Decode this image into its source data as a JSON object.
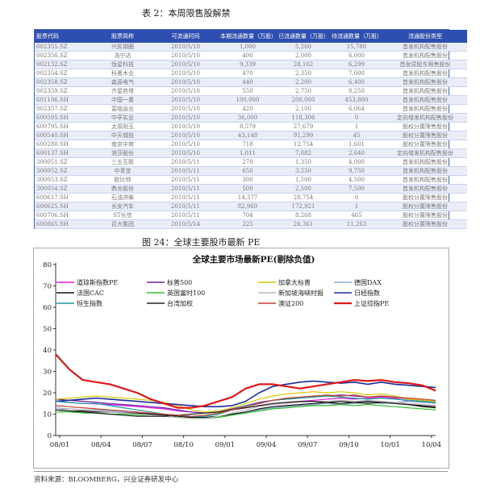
{
  "table_caption": "表 2：本周限售股解禁",
  "table": {
    "headers": [
      "股票代码",
      "股票简称",
      "可流通时间",
      "本期流通数量（万股）",
      "已流通数量（万股）",
      "待流通数量（万股）",
      "流通股份类型"
    ],
    "rows": [
      [
        "002355.SZ",
        "兴民钢圈",
        "2010/5/10",
        "1,000",
        "5,260",
        "15,780",
        "首发机构配售股份"
      ],
      [
        "002356.SZ",
        "浩宁达",
        "2010/5/10",
        "400",
        "2,000",
        "6,000",
        "首发机构配售股份"
      ],
      [
        "002132.SZ",
        "恒星科技",
        "2010/5/10",
        "9,339",
        "28,162",
        "6,299",
        "首发原股东限售股份"
      ],
      [
        "002354.SZ",
        "科冕木业",
        "2010/5/10",
        "470",
        "2,350",
        "7,000",
        "首发机构配售股份"
      ],
      [
        "002358.SZ",
        "森源电气",
        "2010/5/10",
        "440",
        "2,200",
        "6,400",
        "首发机构配售股份"
      ],
      [
        "002359.SZ",
        "齐星铁塔",
        "2010/5/10",
        "550",
        "2,750",
        "8,250",
        "首发机构配售股份"
      ],
      [
        "601106.SH",
        "中国一重",
        "2010/5/10",
        "100,000",
        "200,000",
        "453,800",
        "首发机构配售股份"
      ],
      [
        "002357.SZ",
        "富临运业",
        "2010/5/10",
        "420",
        "2,100",
        "6,064",
        "首发机构配售股份"
      ],
      [
        "600595.SH",
        "中孚实业",
        "2010/5/10",
        "36,000",
        "118,306",
        "0",
        "定向增发机构配售股份"
      ],
      [
        "600795.SH",
        "太原刚玉",
        "2010/5/10",
        "8,579",
        "27,679",
        "1",
        "股权分置限售股份"
      ],
      [
        "600540.SH",
        "中天城投",
        "2010/5/10",
        "43,148",
        "91,299",
        "45",
        "股权分置限售股份"
      ],
      [
        "600280.SH",
        "南京中商",
        "2010/5/10",
        "718",
        "12,754",
        "1,601",
        "股权分置限售股份"
      ],
      [
        "600137.SH",
        "浪莎股份",
        "2010/5/10",
        "1,011",
        "7,082",
        "2,640",
        "定向增发机构配售股份"
      ],
      [
        "300051.SZ",
        "三五互联",
        "2010/5/11",
        "270",
        "1,350",
        "4,000",
        "首发机构配售股份"
      ],
      [
        "300052.SZ",
        "中青宝",
        "2010/5/11",
        "650",
        "3,250",
        "9,750",
        "首发机构配售股份"
      ],
      [
        "300053.SZ",
        "欧比特",
        "2010/5/11",
        "300",
        "1,500",
        "4,500",
        "首发机构配售股份"
      ],
      [
        "300054.SZ",
        "鼎龙股份",
        "2010/5/11",
        "500",
        "2,500",
        "7,500",
        "首发机构配售股份"
      ],
      [
        "600617.SH",
        "石油济柴",
        "2010/5/11",
        "14,377",
        "28,754",
        "0",
        "股权分置限售股份"
      ],
      [
        "600625.SH",
        "长安汽车",
        "2010/5/11",
        "82,969",
        "172,921",
        "1",
        "股权分置限售股份"
      ],
      [
        "600706.SH",
        "ST长信",
        "2010/5/11",
        "704",
        "8,268",
        "465",
        "股权分置限售股份"
      ],
      [
        "600865.SH",
        "百大集团",
        "2010/5/14",
        "225",
        "26,361",
        "11,263",
        "股权分置限售股份"
      ]
    ]
  },
  "chart_caption": "图 24：全球主要股市最新 PE",
  "source": "资料来源：BLOOMBERG，兴业证券研发中心",
  "chart_data": {
    "type": "line",
    "title": "全球主要市场最新PE(剔除负值)",
    "ylim": [
      0,
      80
    ],
    "yticks": [
      0,
      10,
      20,
      30,
      40,
      50,
      60,
      70,
      80
    ],
    "xticks": [
      "08/01",
      "08/04",
      "08/07",
      "08/10",
      "09/01",
      "09/04",
      "09/07",
      "09/10",
      "10/01",
      "10/04"
    ],
    "x_range": [
      0,
      28
    ],
    "legend_placement": "top",
    "series": [
      {
        "name": "道琼斯指数PE",
        "color": "#e020e0",
        "width": 1.2,
        "values": [
          16,
          15.5,
          15,
          14.8,
          14.5,
          14,
          13.5,
          13,
          12.5,
          11.5,
          11,
          10.5,
          11,
          12,
          13,
          14,
          15,
          15.5,
          16,
          16.5,
          17,
          17.5,
          17,
          17.5,
          18,
          17.5,
          16,
          16,
          15.5
        ]
      },
      {
        "name": "标普500",
        "color": "#6a1fa0",
        "width": 1.2,
        "values": [
          17,
          16.5,
          16,
          15.5,
          15,
          14.5,
          14,
          13.5,
          13,
          12,
          11,
          10.5,
          11,
          12.5,
          14,
          15.5,
          16.5,
          17,
          17.5,
          18,
          18.5,
          19,
          18.5,
          18,
          18.5,
          18,
          17,
          16.5,
          16
        ]
      },
      {
        "name": "加拿大标普",
        "color": "#d8c800",
        "width": 1.2,
        "values": [
          17,
          17.5,
          18,
          18.5,
          18,
          17.5,
          17,
          16.5,
          15.5,
          14,
          12,
          11,
          11.5,
          13,
          15,
          17,
          18.5,
          19.5,
          20,
          20.5,
          20,
          20.5,
          20,
          19,
          19.5,
          18.5,
          17,
          16.5,
          16
        ]
      },
      {
        "name": "德国DAX",
        "color": "#88aad8",
        "width": 1.2,
        "values": [
          13,
          12.5,
          12,
          12,
          11.5,
          11,
          10.5,
          10,
          10,
          9.5,
          9,
          8.5,
          9,
          10,
          11,
          12,
          13,
          13.5,
          14,
          14.5,
          15,
          14.5,
          15,
          15.5,
          15,
          15.5,
          16,
          15.5,
          15
        ]
      },
      {
        "name": "法国CAC",
        "color": "#111111",
        "width": 1.2,
        "values": [
          12,
          11.5,
          11.5,
          11,
          11,
          10.5,
          10.5,
          10,
          9.5,
          9,
          8.5,
          8.5,
          9,
          10,
          11,
          12.5,
          13.5,
          14,
          14.5,
          15,
          15.5,
          15,
          15.5,
          16,
          15.5,
          15,
          14.5,
          13.5,
          13
        ]
      },
      {
        "name": "英国富时100",
        "color": "#30c030",
        "width": 1.2,
        "values": [
          11,
          11,
          10.5,
          10.5,
          10,
          10,
          9.5,
          9,
          9,
          8.5,
          8,
          8,
          8.5,
          9.5,
          10.5,
          11.5,
          12.5,
          13,
          13.5,
          14,
          14,
          14.5,
          14,
          14.5,
          14,
          13.5,
          13,
          12.5,
          12
        ]
      },
      {
        "name": "新加坡海峡时报",
        "color": "#b8b8b8",
        "width": 1.2,
        "values": [
          12,
          12.5,
          12,
          11.5,
          11,
          10.5,
          10,
          9.5,
          9,
          8.5,
          8,
          8,
          9,
          10.5,
          12,
          13.5,
          14.5,
          15,
          15.5,
          16,
          16,
          16.5,
          16,
          16.5,
          16,
          15.5,
          15,
          14.5,
          14
        ]
      },
      {
        "name": "日经指数",
        "color": "#1c2c9a",
        "width": 1.6,
        "values": [
          16,
          16.5,
          17,
          17.5,
          17,
          16.5,
          16,
          15.5,
          15,
          14.5,
          14,
          13.5,
          13.5,
          14,
          16,
          20,
          23,
          24,
          25,
          25.5,
          25,
          24.5,
          25,
          24,
          25,
          24,
          23.5,
          23,
          22.5
        ]
      },
      {
        "name": "恒生指数",
        "color": "#1a9a9a",
        "width": 1.2,
        "values": [
          16,
          15.5,
          15,
          15,
          14,
          13,
          12,
          11,
          10,
          9.5,
          9,
          9,
          10,
          12,
          14,
          15,
          16.5,
          17,
          17.5,
          18,
          18.5,
          18,
          17.5,
          17,
          17.5,
          17,
          16.5,
          16,
          15.5
        ]
      },
      {
        "name": "台湾加权",
        "color": "#222222",
        "width": 1.2,
        "values": [
          12,
          11.5,
          11,
          10.5,
          10,
          9.5,
          9,
          9,
          9,
          9.5,
          10,
          10.5,
          11,
          12,
          13,
          14,
          15,
          15.5,
          16,
          16,
          15.5,
          16,
          15.5,
          15,
          15.5,
          15,
          14.5,
          14,
          13.5
        ]
      },
      {
        "name": "澳证200",
        "color": "#c0402a",
        "width": 1.2,
        "values": [
          14,
          13.5,
          13,
          12.5,
          12,
          11.5,
          11,
          10.5,
          10,
          9.5,
          9,
          9.5,
          10.5,
          12,
          13.5,
          15,
          16.5,
          17.5,
          18,
          18.5,
          19,
          18.5,
          19,
          18,
          18.5,
          18,
          17.5,
          17,
          16.5
        ]
      },
      {
        "name": "上证综指PE",
        "color": "#e01818",
        "width": 2.2,
        "values": [
          38,
          31,
          26,
          25,
          24,
          22,
          20,
          17,
          15,
          13,
          13,
          14,
          16,
          18,
          22,
          24,
          24,
          23,
          22,
          23,
          24,
          25,
          26,
          25.5,
          26,
          25,
          24.5,
          23.5,
          21
        ]
      }
    ]
  }
}
